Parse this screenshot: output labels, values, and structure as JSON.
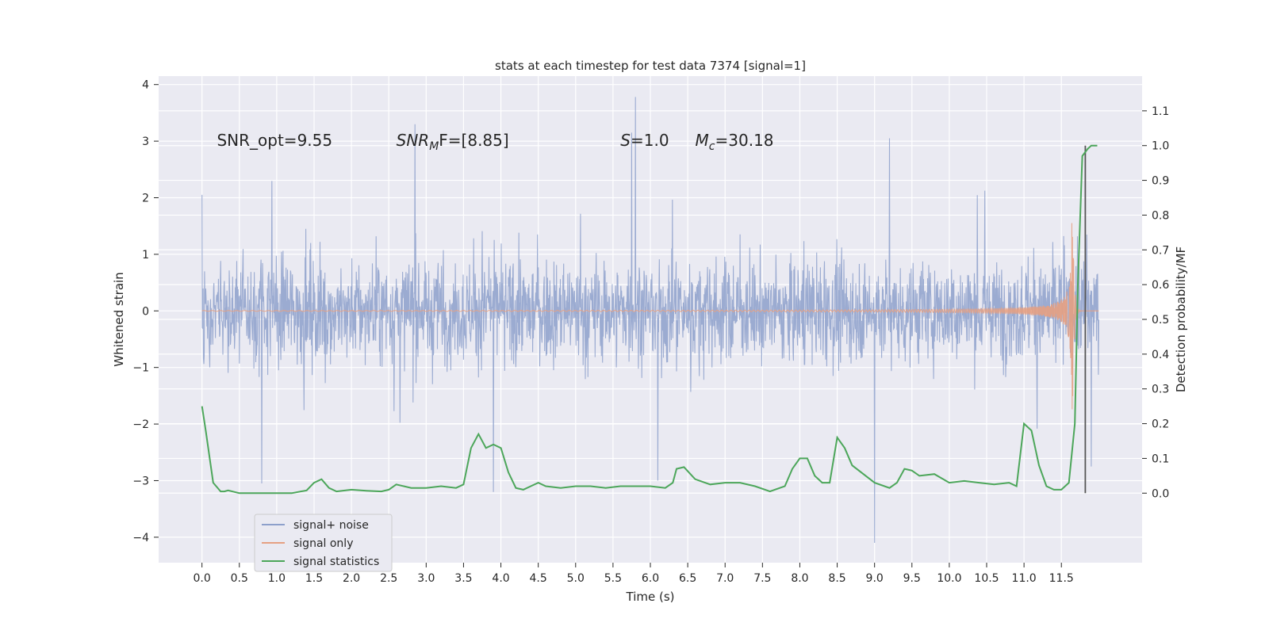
{
  "chart_data": {
    "type": "line",
    "title": "stats at each timestep for test data 7374 [signal=1]",
    "xlabel": "Time (s)",
    "ylabel": "Whitened strain",
    "y2label": "Detection probability/MF",
    "xlim": [
      -0.58,
      12.58
    ],
    "ylim": [
      -4.45,
      4.15
    ],
    "y2lim": [
      -0.2,
      1.2
    ],
    "xticks": [
      0.0,
      0.5,
      1.0,
      1.5,
      2.0,
      2.5,
      3.0,
      3.5,
      4.0,
      4.5,
      5.0,
      5.5,
      6.0,
      6.5,
      7.0,
      7.5,
      8.0,
      8.5,
      9.0,
      9.5,
      10.0,
      10.5,
      11.0,
      11.5
    ],
    "xtick_labels": [
      "0.0",
      "0.5",
      "1.0",
      "1.5",
      "2.0",
      "2.5",
      "3.0",
      "3.5",
      "4.0",
      "4.5",
      "5.0",
      "5.5",
      "6.0",
      "6.5",
      "7.0",
      "7.5",
      "8.0",
      "8.5",
      "9.0",
      "9.5",
      "10.0",
      "10.5",
      "11.0",
      "11.5"
    ],
    "yticks": [
      -4,
      -3,
      -2,
      -1,
      0,
      1,
      2,
      3,
      4
    ],
    "ytick_labels": [
      "−4",
      "−3",
      "−2",
      "−1",
      "0",
      "1",
      "2",
      "3",
      "4"
    ],
    "y2ticks": [
      0.0,
      0.1,
      0.2,
      0.3,
      0.4,
      0.5,
      0.6,
      0.7,
      0.8,
      0.9,
      1.0,
      1.1
    ],
    "y2tick_labels": [
      "0.0",
      "0.1",
      "0.2",
      "0.3",
      "0.4",
      "0.5",
      "0.6",
      "0.7",
      "0.8",
      "0.9",
      "1.0",
      "1.1"
    ],
    "grid": true,
    "legend_position": "bottom-left",
    "annotations": [
      {
        "text": "SNR_opt=9.55",
        "x": 0.2,
        "y": 3.0
      },
      {
        "text": "SNR",
        "sub": "M",
        "rest": "F=[8.85]",
        "x": 2.6,
        "y": 3.0,
        "italic_main": true
      },
      {
        "text": "S",
        "rest": "=1.0",
        "x": 5.6,
        "y": 3.0,
        "italic_main": true
      },
      {
        "text": "M",
        "sub": "c",
        "rest": "=30.18",
        "x": 6.6,
        "y": 3.0,
        "italic_main": true
      }
    ],
    "vline": {
      "x": 11.82,
      "y2_range": [
        0.0,
        1.0
      ],
      "color": "#555555"
    },
    "series": [
      {
        "name": "signal+ noise",
        "color": "#8da0cb",
        "kind": "noise",
        "x_range": [
          0.0,
          12.0
        ],
        "typical_amplitude": 1.3,
        "max": 3.78,
        "min": -4.1,
        "peaks": [
          [
            5.8,
            3.78
          ],
          [
            5.75,
            3.15
          ],
          [
            2.85,
            3.3
          ],
          [
            9.2,
            3.05
          ],
          [
            0.0,
            2.05
          ],
          [
            9.0,
            -4.1
          ],
          [
            0.8,
            -3.05
          ],
          [
            3.9,
            -3.2
          ],
          [
            6.1,
            -3.0
          ],
          [
            11.9,
            -2.75
          ]
        ]
      },
      {
        "name": "signal only",
        "color": "#e5a082",
        "kind": "chirp",
        "x_range": [
          0.0,
          12.0
        ],
        "peak_time": 11.65,
        "peak_amplitude": 1.85,
        "ringdown_min": -1.9
      },
      {
        "name": "signal statistics",
        "color": "#4ca65a",
        "kind": "line",
        "axis": "y2",
        "x": [
          0.0,
          0.05,
          0.15,
          0.25,
          0.3,
          0.35,
          0.5,
          0.6,
          0.7,
          1.0,
          1.2,
          1.4,
          1.5,
          1.6,
          1.7,
          1.8,
          2.0,
          2.2,
          2.4,
          2.5,
          2.6,
          2.7,
          2.8,
          3.0,
          3.2,
          3.4,
          3.5,
          3.6,
          3.7,
          3.8,
          3.9,
          4.0,
          4.1,
          4.2,
          4.3,
          4.4,
          4.5,
          4.6,
          4.8,
          5.0,
          5.2,
          5.4,
          5.6,
          5.8,
          6.0,
          6.2,
          6.3,
          6.35,
          6.45,
          6.6,
          6.8,
          7.0,
          7.2,
          7.4,
          7.6,
          7.8,
          7.9,
          8.0,
          8.1,
          8.2,
          8.3,
          8.4,
          8.5,
          8.6,
          8.7,
          9.0,
          9.2,
          9.3,
          9.4,
          9.5,
          9.6,
          9.8,
          10.0,
          10.2,
          10.4,
          10.6,
          10.8,
          10.9,
          11.0,
          11.1,
          11.2,
          11.3,
          11.4,
          11.5,
          11.6,
          11.68,
          11.72,
          11.78,
          11.85,
          11.9,
          11.98
        ],
        "y": [
          0.25,
          0.18,
          0.03,
          0.005,
          0.005,
          0.008,
          0.0,
          0.0,
          0.0,
          0.0,
          0.0,
          0.008,
          0.03,
          0.04,
          0.015,
          0.005,
          0.01,
          0.007,
          0.005,
          0.01,
          0.025,
          0.02,
          0.015,
          0.015,
          0.02,
          0.015,
          0.025,
          0.13,
          0.17,
          0.13,
          0.14,
          0.13,
          0.06,
          0.015,
          0.01,
          0.02,
          0.03,
          0.02,
          0.015,
          0.02,
          0.02,
          0.015,
          0.02,
          0.02,
          0.02,
          0.015,
          0.03,
          0.07,
          0.075,
          0.04,
          0.025,
          0.03,
          0.03,
          0.02,
          0.005,
          0.02,
          0.07,
          0.1,
          0.1,
          0.05,
          0.03,
          0.03,
          0.16,
          0.13,
          0.08,
          0.03,
          0.015,
          0.03,
          0.07,
          0.065,
          0.05,
          0.055,
          0.03,
          0.035,
          0.03,
          0.025,
          0.03,
          0.02,
          0.2,
          0.18,
          0.08,
          0.02,
          0.01,
          0.01,
          0.03,
          0.2,
          0.6,
          0.97,
          0.99,
          1.0,
          1.0
        ]
      }
    ]
  }
}
